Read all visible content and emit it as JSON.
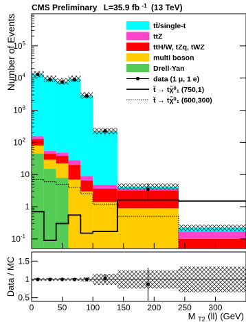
{
  "header": {
    "experiment": "CMS Preliminary",
    "lumi_prefix": "L=35.9 fb",
    "lumi_exponent": "-1",
    "energy": "(13 TeV)"
  },
  "colors": {
    "ttbar_single_t": "#00ffff",
    "ttZ": "#ff44cc",
    "ttH_tWZ": "#ff0000",
    "multi_boson": "#ffcc00",
    "drell_yan": "#55cc55",
    "data": "#000000"
  },
  "chart_data": [
    {
      "type": "bar",
      "stacked": true,
      "log_y": true,
      "ylabel": "Number of Events",
      "xlim": [
        0,
        350
      ],
      "ylim": [
        0.05,
        1000000
      ],
      "ytick_labels": [
        "10",
        "1",
        "10",
        "10",
        "10",
        "10",
        "10",
        "10"
      ],
      "ytick_exponents": [
        "-1",
        "",
        "",
        "2",
        "3",
        "4",
        "5",
        ""
      ],
      "y_ticks": [
        0.1,
        1,
        10,
        100,
        1000,
        10000,
        100000
      ],
      "bins": [
        [
          0,
          20
        ],
        [
          20,
          40
        ],
        [
          40,
          60
        ],
        [
          60,
          80
        ],
        [
          80,
          100
        ],
        [
          100,
          140
        ],
        [
          140,
          240
        ],
        [
          240,
          350
        ]
      ],
      "series": [
        {
          "name": "Drell-Yan",
          "color_key": "drell_yan",
          "values": [
            45,
            15,
            8,
            0,
            0,
            0,
            0,
            0
          ]
        },
        {
          "name": "multi boson",
          "color_key": "multi_boson",
          "values": [
            35,
            14,
            14,
            7,
            3,
            1.4,
            0.9,
            0
          ]
        },
        {
          "name": "ttH/W, tZq, tWZ",
          "color_key": "ttH_tWZ",
          "values": [
            45,
            15,
            16,
            13,
            3.5,
            2.2,
            2.3,
            0.1
          ]
        },
        {
          "name": "ttZ",
          "color_key": "ttZ",
          "values": [
            30,
            10,
            10,
            8,
            2.5,
            1.2,
            0.4,
            0.07
          ]
        },
        {
          "name": "tt̄/single-t",
          "color_key": "ttbar_single_t",
          "values": [
            13000,
            9500,
            7800,
            9500,
            2900,
            220,
            0.6,
            0.05
          ]
        }
      ],
      "signals": [
        {
          "name": "t̃ → tχ̃⁰₁ (750,1)",
          "style": "solid",
          "values": [
            0.7,
            0.09,
            0.3,
            0.55,
            0.15,
            0.17,
            1.6,
            1.5
          ]
        },
        {
          "name": "t̃ → tχ̃⁰₁ (600,300)",
          "style": "dotted",
          "values": [
            7,
            6,
            5,
            4,
            2.5,
            1.2,
            0.5,
            0
          ]
        }
      ],
      "data_points": {
        "name": "data (1 μ, 1 e)",
        "x": [
          10,
          30,
          50,
          70,
          90,
          120,
          190
        ],
        "y": [
          13000,
          9000,
          7500,
          9000,
          2800,
          230,
          3.5
        ],
        "y_err": [
          115,
          95,
          87,
          95,
          53,
          15,
          1.9
        ]
      },
      "legend": [
        {
          "label": "tt̄/single-t",
          "kind": "fill",
          "color_key": "ttbar_single_t"
        },
        {
          "label": "ttZ",
          "kind": "fill",
          "color_key": "ttZ"
        },
        {
          "label": "ttH/W, tZq, tWZ",
          "kind": "fill",
          "color_key": "ttH_tWZ"
        },
        {
          "label": "multi boson",
          "kind": "fill",
          "color_key": "multi_boson"
        },
        {
          "label": "Drell-Yan",
          "kind": "fill",
          "color_key": "drell_yan"
        },
        {
          "label": "data (1 μ, 1 e)",
          "kind": "marker"
        },
        {
          "label": "t̃ → tχ̃⁰₁ (750,1)",
          "kind": "line"
        },
        {
          "label": "t̃ → tχ̃⁰₁ (600,300)",
          "kind": "dotted"
        }
      ]
    },
    {
      "type": "scatter",
      "ylabel": "Data / MC",
      "xlabel": "M",
      "xlabel_sub": "T2",
      "xlabel_suffix": "(ll) (GeV)",
      "xlim": [
        0,
        350
      ],
      "ylim": [
        0.4,
        1.75
      ],
      "y_ticks": [
        0.5,
        1,
        1.5
      ],
      "ytick_labels": [
        "0.5",
        "1",
        "1.5"
      ],
      "x_ticks": [
        0,
        50,
        100,
        150,
        200,
        250,
        300
      ],
      "xtick_labels": [
        "0",
        "50",
        "100",
        "150",
        "200",
        "250",
        "300"
      ],
      "x": [
        10,
        30,
        50,
        70,
        90,
        120,
        190
      ],
      "y": [
        1.0,
        1.0,
        1.0,
        1.0,
        1.0,
        1.03,
        0.87
      ],
      "y_err": [
        0.02,
        0.02,
        0.02,
        0.02,
        0.03,
        0.1,
        0.45
      ],
      "uncertainty_band": {
        "bins": [
          [
            0,
            20
          ],
          [
            20,
            40
          ],
          [
            40,
            60
          ],
          [
            60,
            80
          ],
          [
            80,
            100
          ],
          [
            100,
            140
          ],
          [
            140,
            240
          ],
          [
            240,
            350
          ]
        ],
        "half_width": [
          0.04,
          0.04,
          0.04,
          0.04,
          0.06,
          0.15,
          0.25,
          0.35
        ]
      }
    }
  ]
}
